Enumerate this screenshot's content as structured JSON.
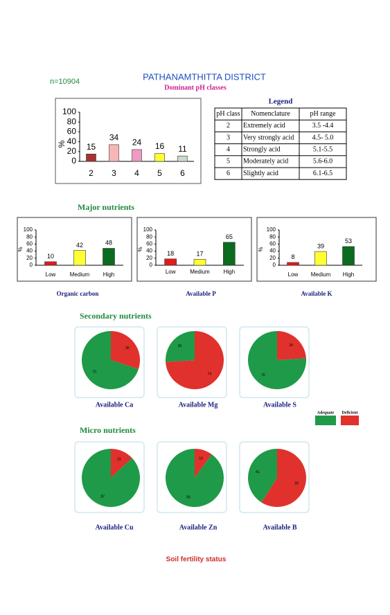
{
  "header": {
    "sample_size": "n=10904",
    "title": "PATHANAMTHITTA DISTRICT",
    "subtitle": "Dominant pH classes"
  },
  "legend_table": {
    "title": "Legend",
    "columns": [
      "pH class",
      "Nomenclature",
      "pH range"
    ],
    "rows": [
      [
        "2",
        "Extremely acid",
        "3.5 -4.4"
      ],
      [
        "3",
        "Very strongly acid",
        "4.5- 5.0"
      ],
      [
        "4",
        "Strongly acid",
        "5.1-5.5"
      ],
      [
        "5",
        "Moderately acid",
        "5.6-6.0"
      ],
      [
        "6",
        "Slightly acid",
        "6.1-6.5"
      ]
    ]
  },
  "sections": {
    "major": "Major nutrients",
    "secondary": "Secondary nutrients",
    "micro": "Micro nutrients"
  },
  "pie_legend": [
    {
      "name": "Adequate",
      "color": "#1f9a48"
    },
    {
      "name": "Deficient",
      "color": "#e0312c"
    }
  ],
  "footer": "Soil fertility status",
  "chart_data": [
    {
      "type": "bar",
      "y_label": "%",
      "categories": [
        "2",
        "3",
        "4",
        "5",
        "6"
      ],
      "values": [
        15,
        34,
        24,
        16,
        11
      ],
      "colors": [
        "#a83232",
        "#f7b5b5",
        "#ee9ac4",
        "#ffff33",
        "#c9dccb"
      ],
      "ylim": [
        0,
        100
      ],
      "yticks": [
        0,
        20,
        40,
        60,
        80,
        100
      ]
    },
    {
      "type": "bar",
      "title": "Organic carbon",
      "y_label": "%",
      "categories": [
        "Low",
        "Medium",
        "High"
      ],
      "values": [
        10,
        42,
        48
      ],
      "colors": [
        "#e31a1c",
        "#ffff33",
        "#0b6b1e"
      ],
      "ylim": [
        0,
        100
      ],
      "yticks": [
        0,
        20,
        40,
        60,
        80,
        100
      ]
    },
    {
      "type": "bar",
      "title": "Available  P",
      "y_label": "%",
      "categories": [
        "Low",
        "Medium",
        "High"
      ],
      "values": [
        18,
        17,
        65
      ],
      "colors": [
        "#e31a1c",
        "#ffff33",
        "#0b6b1e"
      ],
      "ylim": [
        0,
        100
      ],
      "yticks": [
        0,
        20,
        40,
        60,
        80,
        100
      ]
    },
    {
      "type": "bar",
      "title": "Available  K",
      "y_label": "%",
      "categories": [
        "Low",
        "Medium",
        "High"
      ],
      "values": [
        8,
        39,
        53
      ],
      "colors": [
        "#e31a1c",
        "#ffff33",
        "#0b6b1e"
      ],
      "ylim": [
        0,
        100
      ],
      "yticks": [
        0,
        20,
        40,
        60,
        80,
        100
      ]
    },
    {
      "type": "pie",
      "title": "Available  Ca",
      "values": [
        70,
        30
      ]
    },
    {
      "type": "pie",
      "title": "Available  Mg",
      "values": [
        26,
        74
      ]
    },
    {
      "type": "pie",
      "title": "Available  S",
      "values": [
        76,
        24
      ]
    },
    {
      "type": "pie",
      "title": "Available Cu",
      "values": [
        87,
        13
      ]
    },
    {
      "type": "pie",
      "title": "Available  Zn",
      "values": [
        90,
        10
      ]
    },
    {
      "type": "pie",
      "title": "Available  B",
      "values": [
        41,
        59
      ]
    }
  ]
}
